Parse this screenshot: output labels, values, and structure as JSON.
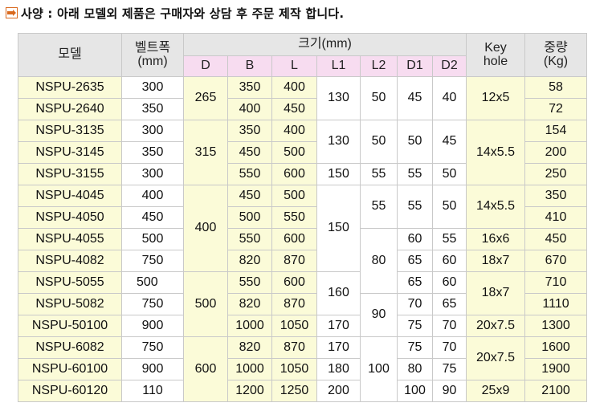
{
  "title": {
    "text": "사양 : 아래 모델외 제품은 구매자와 상담 후 주문 제작 합니다.",
    "bullet_icon": "pointing-hand-icon"
  },
  "header": {
    "model": "모델",
    "belt_width": "벨트폭",
    "belt_width_unit": "(mm)",
    "size_group": "크기(mm)",
    "cols": [
      "D",
      "B",
      "L",
      "L1",
      "L2",
      "D1",
      "D2"
    ],
    "key_hole": "Key",
    "key_hole_2": "hole",
    "weight": "중량",
    "weight_unit": "(Kg)"
  },
  "rows": [
    {
      "model": "NSPU-2635",
      "belt": "300",
      "D": "265",
      "B": "350",
      "L": "400",
      "L1": "130",
      "L2": "50",
      "D1": "45",
      "D2": "40",
      "key": "12x5",
      "weight": "58"
    },
    {
      "model": "NSPU-2640",
      "belt": "350",
      "D": "265",
      "B": "400",
      "L": "450",
      "L1": "130",
      "L2": "50",
      "D1": "45",
      "D2": "40",
      "key": "12x5",
      "weight": "72"
    },
    {
      "model": "NSPU-3135",
      "belt": "300",
      "D": "315",
      "B": "350",
      "L": "400",
      "L1": "130",
      "L2": "50",
      "D1": "50",
      "D2": "45",
      "key": "14x5.5",
      "weight": "154"
    },
    {
      "model": "NSPU-3145",
      "belt": "350",
      "D": "315",
      "B": "450",
      "L": "500",
      "L1": "130",
      "L2": "50",
      "D1": "50",
      "D2": "45",
      "key": "14x5.5",
      "weight": "200"
    },
    {
      "model": "NSPU-3155",
      "belt": "300",
      "D": "315",
      "B": "550",
      "L": "600",
      "L1": "150",
      "L2": "55",
      "D1": "55",
      "D2": "50",
      "key": "14x5.5",
      "weight": "250"
    },
    {
      "model": "NSPU-4045",
      "belt": "400",
      "D": "400",
      "B": "450",
      "L": "500",
      "L1": "150",
      "L2": "55",
      "D1": "55",
      "D2": "50",
      "key": "14x5.5",
      "weight": "350"
    },
    {
      "model": "NSPU-4050",
      "belt": "450",
      "D": "400",
      "B": "500",
      "L": "550",
      "L1": "150",
      "L2": "55",
      "D1": "55",
      "D2": "50",
      "key": "14x5.5",
      "weight": "410"
    },
    {
      "model": "NSPU-4055",
      "belt": "500",
      "D": "400",
      "B": "550",
      "L": "600",
      "L1": "150",
      "L2": "80",
      "D1": "60",
      "D2": "55",
      "key": "16x6",
      "weight": "450"
    },
    {
      "model": "NSPU-4082",
      "belt": "750",
      "D": "400",
      "B": "820",
      "L": "870",
      "L1": "150",
      "L2": "80",
      "D1": "65",
      "D2": "60",
      "key": "18x7",
      "weight": "670"
    },
    {
      "model": "NSPU-5055",
      "belt": "500",
      "D": "500",
      "B": "550",
      "L": "600",
      "L1": "160",
      "L2": "80",
      "D1": "65",
      "D2": "60",
      "key": "18x7",
      "weight": "710"
    },
    {
      "model": "NSPU-5082",
      "belt": "750",
      "D": "500",
      "B": "820",
      "L": "870",
      "L1": "160",
      "L2": "90",
      "D1": "70",
      "D2": "65",
      "key": "18x7",
      "weight": "1110"
    },
    {
      "model": "NSPU-50100",
      "belt": "900",
      "D": "500",
      "B": "1000",
      "L": "1050",
      "L1": "170",
      "L2": "90",
      "D1": "75",
      "D2": "70",
      "key": "20x7.5",
      "weight": "1300"
    },
    {
      "model": "NSPU-6082",
      "belt": "750",
      "D": "600",
      "B": "820",
      "L": "870",
      "L1": "170",
      "L2": "100",
      "D1": "75",
      "D2": "70",
      "key": "20x7.5",
      "weight": "1600"
    },
    {
      "model": "NSPU-60100",
      "belt": "900",
      "D": "600",
      "B": "1000",
      "L": "1050",
      "L1": "180",
      "L2": "100",
      "D1": "80",
      "D2": "75",
      "key": "20x7.5",
      "weight": "1900"
    },
    {
      "model": "NSPU-60120",
      "belt": "110",
      "D": "600",
      "B": "1200",
      "L": "1250",
      "L1": "200",
      "L2": "100",
      "D1": "100",
      "D2": "90",
      "key": "25x9",
      "weight": "2100"
    }
  ],
  "colors": {
    "header_gray": "#e6e6e6",
    "header_pink": "#f7dcf0",
    "row_yellow": "#fbfbd8",
    "border": "#c9c9c9",
    "bullet_orange": "#d9691e"
  }
}
